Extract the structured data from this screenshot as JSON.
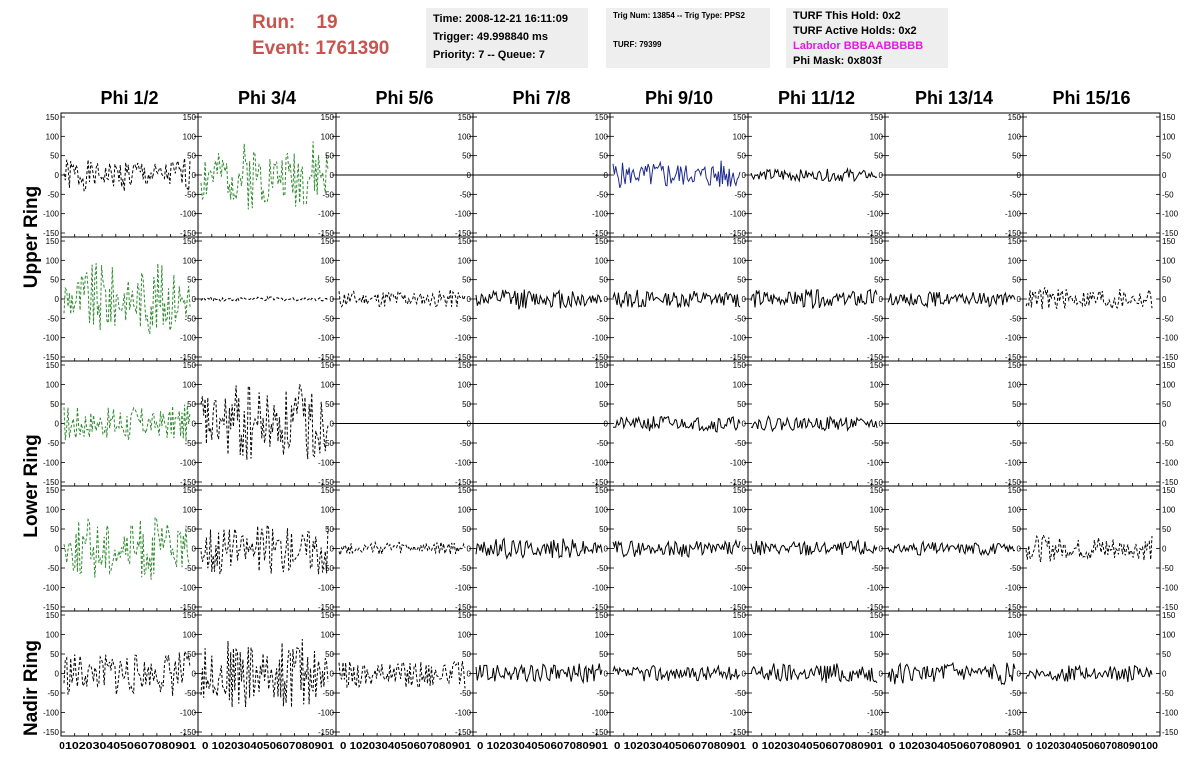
{
  "header": {
    "run_label": "Run:",
    "run_value": "19",
    "event_label": "Event:",
    "event_value": "1761390",
    "info_box1": {
      "time": "Time: 2008-12-21 16:11:09",
      "trigger": "Trigger: 49.998840 ms",
      "priority": "Priority: 7 -- Queue: 7"
    },
    "info_box2": {
      "trig": "Trig Num: 13854 -- Trig Type: PPS2",
      "turf": "TURF: 79399"
    },
    "info_box3": {
      "hold": "TURF This Hold: 0x2",
      "active": "TURF Active Holds: 0x2",
      "labrador": "Labrador BBBAABBBBB",
      "phimask": "Phi Mask: 0x803f"
    }
  },
  "colors": {
    "header_red": "#c9534e",
    "labrador_magenta": "#e11be1",
    "trace_black": "#000000",
    "trace_green": "#2e8b2e",
    "trace_blue": "#1f2a8f",
    "box_bg": "#eeeeee"
  },
  "chart_data": {
    "type": "line",
    "columns": [
      "Phi 1/2",
      "Phi 3/4",
      "Phi 5/6",
      "Phi 7/8",
      "Phi 9/10",
      "Phi 11/12",
      "Phi 13/14",
      "Phi 15/16"
    ],
    "ring_labels": [
      "Upper Ring",
      "Lower Ring",
      "Nadir Ring"
    ],
    "ylim": [
      -150,
      150
    ],
    "yticks": [
      -150,
      -100,
      -50,
      0,
      50,
      100,
      150
    ],
    "xlim": [
      0,
      100
    ],
    "xticks": [
      0,
      10,
      20,
      30,
      40,
      50,
      60,
      70,
      80,
      90,
      100
    ],
    "bottom_xtick_text": [
      "0",
      "1020304050607080901",
      "0 1020304050607080901",
      "0 1020304050607080901",
      "0 1020304050607080901",
      "0 1020304050607080901",
      "0 1020304050607080901",
      "0 1020304050607080901",
      "0 102030405060708090100"
    ],
    "panels": [
      [
        {
          "style": "dashed",
          "color": "black",
          "amp": 45,
          "seed": 1
        },
        {
          "style": "dashed",
          "color": "green",
          "amp": 90,
          "seed": 2
        },
        {
          "style": "flat",
          "color": "black",
          "amp": 0,
          "seed": 3
        },
        {
          "style": "flat",
          "color": "black",
          "amp": 0,
          "seed": 4
        },
        {
          "style": "solid",
          "color": "blue",
          "amp": 38,
          "seed": 5
        },
        {
          "style": "solid",
          "color": "black",
          "amp": 18,
          "seed": 6
        },
        {
          "style": "flat",
          "color": "black",
          "amp": 0,
          "seed": 7
        },
        {
          "style": "flat",
          "color": "black",
          "amp": 0,
          "seed": 8
        }
      ],
      [
        {
          "style": "dashed",
          "color": "green",
          "amp": 95,
          "seed": 9
        },
        {
          "style": "dashed",
          "color": "black",
          "amp": 6,
          "seed": 10
        },
        {
          "style": "dashed",
          "color": "black",
          "amp": 25,
          "seed": 11
        },
        {
          "style": "solid",
          "color": "black",
          "amp": 28,
          "seed": 12
        },
        {
          "style": "solid",
          "color": "black",
          "amp": 25,
          "seed": 13
        },
        {
          "style": "solid",
          "color": "black",
          "amp": 25,
          "seed": 14
        },
        {
          "style": "solid",
          "color": "black",
          "amp": 20,
          "seed": 15
        },
        {
          "style": "dashed",
          "color": "black",
          "amp": 32,
          "seed": 16
        }
      ],
      [
        {
          "style": "dashed",
          "color": "green",
          "amp": 50,
          "seed": 17
        },
        {
          "style": "dashed",
          "color": "black",
          "amp": 110,
          "seed": 18
        },
        {
          "style": "flat",
          "color": "black",
          "amp": 0,
          "seed": 19
        },
        {
          "style": "flat",
          "color": "black",
          "amp": 0,
          "seed": 20
        },
        {
          "style": "solid",
          "color": "black",
          "amp": 22,
          "seed": 21
        },
        {
          "style": "solid",
          "color": "black",
          "amp": 20,
          "seed": 22
        },
        {
          "style": "flat",
          "color": "black",
          "amp": 0,
          "seed": 23
        },
        {
          "style": "flat",
          "color": "black",
          "amp": 0,
          "seed": 24
        }
      ],
      [
        {
          "style": "dashed",
          "color": "green",
          "amp": 85,
          "seed": 25
        },
        {
          "style": "dashed",
          "color": "black",
          "amp": 70,
          "seed": 26
        },
        {
          "style": "dashed",
          "color": "black",
          "amp": 18,
          "seed": 27
        },
        {
          "style": "solid",
          "color": "black",
          "amp": 28,
          "seed": 28
        },
        {
          "style": "solid",
          "color": "black",
          "amp": 22,
          "seed": 29
        },
        {
          "style": "solid",
          "color": "black",
          "amp": 22,
          "seed": 30
        },
        {
          "style": "solid",
          "color": "black",
          "amp": 18,
          "seed": 31
        },
        {
          "style": "dashed",
          "color": "black",
          "amp": 35,
          "seed": 32
        }
      ],
      [
        {
          "style": "dashed",
          "color": "black",
          "amp": 60,
          "seed": 33
        },
        {
          "style": "dashed",
          "color": "black",
          "amp": 95,
          "seed": 34
        },
        {
          "style": "dashed",
          "color": "black",
          "amp": 40,
          "seed": 35
        },
        {
          "style": "solid",
          "color": "black",
          "amp": 28,
          "seed": 36
        },
        {
          "style": "solid",
          "color": "black",
          "amp": 22,
          "seed": 37
        },
        {
          "style": "solid",
          "color": "black",
          "amp": 28,
          "seed": 38
        },
        {
          "style": "solid",
          "color": "black",
          "amp": 28,
          "seed": 39
        },
        {
          "style": "solid",
          "color": "black",
          "amp": 22,
          "seed": 40
        }
      ]
    ]
  }
}
